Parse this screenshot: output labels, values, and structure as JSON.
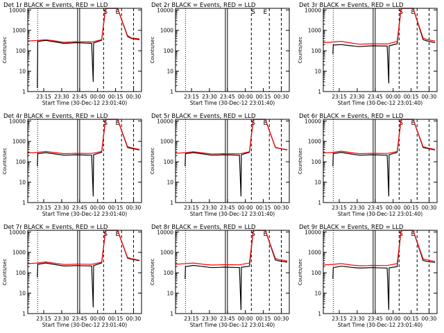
{
  "chart_data": [
    {
      "type": "line",
      "title": "Det 1r BLACK = Events, RED = LLD",
      "xlabel": "Start Time (30-Dec-12 23:01:40)",
      "ylabel": "Counts/sec",
      "yscale": "log",
      "ylim": [
        1,
        12000
      ],
      "xlim_seconds_after_start": [
        0,
        5700
      ],
      "x_tick_labels": [
        "23:15",
        "23:30",
        "23:45",
        "00:00",
        "00:15",
        "00:30"
      ],
      "y_tick_labels": [
        "1",
        "10",
        "100",
        "1000",
        "10000"
      ],
      "markers": [
        "S",
        "E"
      ],
      "series": [
        {
          "color": "#000000",
          "x": [
            480,
            500,
            900,
            1400,
            1800,
            2200,
            2400,
            3200,
            3280,
            3300,
            3700,
            3900,
            4000,
            4500,
            5000,
            5200,
            5600
          ],
          "y": [
            1.5,
            290,
            320,
            270,
            230,
            240,
            250,
            230,
            3.0,
            240,
            330,
            12000,
            12000,
            12000,
            500,
            400,
            350
          ]
        },
        {
          "color": "#ff0000",
          "x": [
            0,
            500,
            900,
            1400,
            1800,
            2200,
            2400,
            3200,
            3300,
            3700,
            3900,
            4000,
            4500,
            5000,
            5200,
            5600
          ],
          "y": [
            300,
            320,
            350,
            300,
            260,
            270,
            280,
            270,
            280,
            350,
            12000,
            12000,
            12000,
            550,
            420,
            380
          ]
        }
      ]
    },
    {
      "type": "line",
      "title": "Det 2r BLACK = Events, RED = LLD",
      "xlabel": "Start Time (30-Dec-12 23:01:40)",
      "ylabel": "Counts/sec",
      "yscale": "log",
      "ylim": [
        1,
        12000
      ],
      "xlim_seconds_after_start": [
        0,
        5700
      ],
      "x_tick_labels": [
        "23:15",
        "23:30",
        "23:45",
        "00:00",
        "00:15",
        "00:30"
      ],
      "y_tick_labels": [
        "1",
        "10",
        "100",
        "1000",
        "10000"
      ],
      "markers": [
        "S",
        "E"
      ],
      "series": []
    },
    {
      "type": "line",
      "title": "Det 3r BLACK = Events, RED = LLD",
      "xlabel": "Start Time (30-Dec-12 23:01:40)",
      "ylabel": "Counts/sec",
      "yscale": "log",
      "ylim": [
        1,
        12000
      ],
      "xlim_seconds_after_start": [
        0,
        5700
      ],
      "x_tick_labels": [
        "23:15",
        "23:30",
        "23:45",
        "00:00",
        "00:15",
        "00:30"
      ],
      "y_tick_labels": [
        "1",
        "10",
        "100",
        "1000",
        "10000"
      ],
      "markers": [
        "S",
        "E"
      ],
      "series": [
        {
          "color": "#000000",
          "x": [
            480,
            500,
            900,
            1400,
            1800,
            2200,
            2400,
            3200,
            3280,
            3300,
            3700,
            3900,
            4000,
            4500,
            5000,
            5200,
            5600
          ],
          "y": [
            70,
            190,
            200,
            175,
            160,
            170,
            175,
            170,
            2.5,
            175,
            220,
            12000,
            12000,
            12000,
            350,
            300,
            250
          ]
        },
        {
          "color": "#ff0000",
          "x": [
            0,
            500,
            900,
            1400,
            1800,
            2200,
            2400,
            3200,
            3300,
            3700,
            3900,
            4000,
            4500,
            5000,
            5200,
            5600
          ],
          "y": [
            250,
            270,
            290,
            240,
            210,
            215,
            220,
            215,
            225,
            290,
            12000,
            12000,
            12000,
            420,
            350,
            300
          ]
        }
      ]
    },
    {
      "type": "line",
      "title": "Det 4r BLACK = Events, RED = LLD",
      "xlabel": "Start Time (30-Dec-12 23:01:40)",
      "ylabel": "Counts/sec",
      "yscale": "log",
      "ylim": [
        1,
        12000
      ],
      "xlim_seconds_after_start": [
        0,
        5700
      ],
      "x_tick_labels": [
        "23:15",
        "23:30",
        "23:45",
        "00:00",
        "00:15",
        "00:30"
      ],
      "y_tick_labels": [
        "1",
        "10",
        "100",
        "1000",
        "10000"
      ],
      "markers": [
        "S",
        "E"
      ],
      "series": [
        {
          "color": "#000000",
          "x": [
            480,
            500,
            900,
            1400,
            1800,
            2200,
            2400,
            3200,
            3280,
            3300,
            3700,
            3900,
            4000,
            4500,
            5000,
            5200,
            5600
          ],
          "y": [
            60,
            250,
            280,
            240,
            210,
            215,
            220,
            210,
            2.0,
            220,
            290,
            12000,
            12000,
            12000,
            500,
            450,
            380
          ]
        },
        {
          "color": "#ff0000",
          "x": [
            0,
            500,
            900,
            1400,
            1800,
            2200,
            2400,
            3200,
            3300,
            3700,
            3900,
            4000,
            4500,
            5000,
            5200,
            5600
          ],
          "y": [
            270,
            290,
            320,
            280,
            250,
            255,
            260,
            255,
            265,
            320,
            12000,
            12000,
            12000,
            550,
            480,
            400
          ]
        }
      ]
    },
    {
      "type": "line",
      "title": "Det 5r BLACK = Events, RED = LLD",
      "xlabel": "Start Time (30-Dec-12 23:01:40)",
      "ylabel": "Counts/sec",
      "yscale": "log",
      "ylim": [
        1,
        12000
      ],
      "xlim_seconds_after_start": [
        0,
        5700
      ],
      "x_tick_labels": [
        "23:15",
        "23:30",
        "23:45",
        "00:00",
        "00:15",
        "00:30"
      ],
      "y_tick_labels": [
        "1",
        "10",
        "100",
        "1000",
        "10000"
      ],
      "markers": [
        "S",
        "E"
      ],
      "series": [
        {
          "color": "#000000",
          "x": [
            480,
            500,
            900,
            1400,
            1800,
            2200,
            2400,
            3200,
            3280,
            3300,
            3700,
            3900,
            4000,
            4500,
            5000,
            5200,
            5600
          ],
          "y": [
            60,
            250,
            280,
            240,
            210,
            215,
            220,
            210,
            2.0,
            220,
            290,
            12000,
            12000,
            12000,
            500,
            450,
            380
          ]
        },
        {
          "color": "#ff0000",
          "x": [
            0,
            500,
            900,
            1400,
            1800,
            2200,
            2400,
            3200,
            3300,
            3700,
            3900,
            4000,
            4500,
            5000,
            5200,
            5600
          ],
          "y": [
            260,
            280,
            310,
            270,
            240,
            245,
            250,
            245,
            255,
            310,
            12000,
            12000,
            12000,
            520,
            460,
            390
          ]
        }
      ]
    },
    {
      "type": "line",
      "title": "Det 6r BLACK = Events, RED = LLD",
      "xlabel": "Start Time (30-Dec-12 23:01:40)",
      "ylabel": "Counts/sec",
      "yscale": "log",
      "ylim": [
        1,
        12000
      ],
      "xlim_seconds_after_start": [
        0,
        5700
      ],
      "x_tick_labels": [
        "23:15",
        "23:30",
        "23:45",
        "00:00",
        "00:15",
        "00:30"
      ],
      "y_tick_labels": [
        "1",
        "10",
        "100",
        "1000",
        "10000"
      ],
      "markers": [
        "S",
        "E"
      ],
      "series": [
        {
          "color": "#000000",
          "x": [
            480,
            500,
            900,
            1400,
            1800,
            2200,
            2400,
            3200,
            3280,
            3300,
            3700,
            3900,
            4000,
            4500,
            5000,
            5200,
            5600
          ],
          "y": [
            60,
            250,
            290,
            240,
            210,
            215,
            220,
            210,
            2.0,
            220,
            290,
            12000,
            12000,
            12000,
            500,
            450,
            380
          ]
        },
        {
          "color": "#ff0000",
          "x": [
            0,
            500,
            900,
            1400,
            1800,
            2200,
            2400,
            3200,
            3300,
            3700,
            3900,
            4000,
            4500,
            5000,
            5200,
            5600
          ],
          "y": [
            270,
            290,
            330,
            280,
            250,
            255,
            260,
            255,
            265,
            320,
            12000,
            12000,
            12000,
            550,
            480,
            400
          ]
        }
      ]
    },
    {
      "type": "line",
      "title": "Det 7r BLACK = Events, RED = LLD",
      "xlabel": "Start Time (30-Dec-12 23:01:40)",
      "ylabel": "Counts/sec",
      "yscale": "log",
      "ylim": [
        1,
        12000
      ],
      "xlim_seconds_after_start": [
        0,
        5700
      ],
      "x_tick_labels": [
        "23:15",
        "23:30",
        "23:45",
        "00:00",
        "00:15",
        "00:30"
      ],
      "y_tick_labels": [
        "1",
        "10",
        "100",
        "1000",
        "10000"
      ],
      "markers": [
        "S",
        "E"
      ],
      "series": [
        {
          "color": "#000000",
          "x": [
            480,
            500,
            900,
            1400,
            1800,
            2200,
            2400,
            3200,
            3280,
            3300,
            3700,
            3900,
            4000,
            4500,
            5000,
            5200,
            5600
          ],
          "y": [
            60,
            260,
            300,
            250,
            215,
            220,
            225,
            215,
            2.0,
            225,
            300,
            12000,
            12000,
            12000,
            520,
            460,
            390
          ]
        },
        {
          "color": "#ff0000",
          "x": [
            0,
            500,
            900,
            1400,
            1800,
            2200,
            2400,
            3200,
            3300,
            3700,
            3900,
            4000,
            4500,
            5000,
            5200,
            5600
          ],
          "y": [
            280,
            300,
            340,
            290,
            255,
            260,
            265,
            260,
            270,
            330,
            12000,
            12000,
            12000,
            560,
            490,
            410
          ]
        }
      ]
    },
    {
      "type": "line",
      "title": "Det 8r BLACK = Events, RED = LLD",
      "xlabel": "Start Time (30-Dec-12 23:01:40)",
      "ylabel": "Counts/sec",
      "yscale": "log",
      "ylim": [
        1,
        12000
      ],
      "xlim_seconds_after_start": [
        0,
        5700
      ],
      "x_tick_labels": [
        "23:15",
        "23:30",
        "23:45",
        "00:00",
        "00:15",
        "00:30"
      ],
      "y_tick_labels": [
        "1",
        "10",
        "100",
        "1000",
        "10000"
      ],
      "markers": [
        "S",
        "E"
      ],
      "series": [
        {
          "color": "#000000",
          "x": [
            480,
            500,
            900,
            1400,
            1800,
            2200,
            2400,
            3200,
            3280,
            3300,
            3700,
            3900,
            4000,
            4500,
            5000,
            5200,
            5600
          ],
          "y": [
            50,
            200,
            230,
            200,
            180,
            185,
            190,
            180,
            1.5,
            185,
            210,
            12000,
            12000,
            12000,
            420,
            380,
            330
          ]
        },
        {
          "color": "#ff0000",
          "x": [
            0,
            500,
            900,
            1400,
            1800,
            2200,
            2400,
            3200,
            3300,
            3700,
            3900,
            4000,
            4500,
            5000,
            5200,
            5600
          ],
          "y": [
            260,
            280,
            300,
            260,
            240,
            245,
            250,
            245,
            255,
            300,
            12000,
            12000,
            12000,
            500,
            440,
            380
          ]
        }
      ]
    },
    {
      "type": "line",
      "title": "Det 9r BLACK = Events, RED = LLD",
      "xlabel": "Start Time (30-Dec-12 23:01:40)",
      "ylabel": "Counts/sec",
      "yscale": "log",
      "ylim": [
        1,
        12000
      ],
      "xlim_seconds_after_start": [
        0,
        5700
      ],
      "x_tick_labels": [
        "23:15",
        "23:30",
        "23:45",
        "00:00",
        "00:15",
        "00:30"
      ],
      "y_tick_labels": [
        "1",
        "10",
        "100",
        "1000",
        "10000"
      ],
      "markers": [
        "S",
        "E"
      ],
      "series": [
        {
          "color": "#000000",
          "x": [
            480,
            500,
            900,
            1400,
            1800,
            2200,
            2400,
            3200,
            3280,
            3300,
            3700,
            3900,
            4000,
            4500,
            5000,
            5200,
            5600
          ],
          "y": [
            50,
            180,
            210,
            185,
            170,
            175,
            180,
            170,
            1.5,
            175,
            200,
            12000,
            12000,
            12000,
            400,
            360,
            320
          ]
        },
        {
          "color": "#ff0000",
          "x": [
            0,
            500,
            900,
            1400,
            1800,
            2200,
            2400,
            3200,
            3300,
            3700,
            3900,
            4000,
            4500,
            5000,
            5200,
            5600
          ],
          "y": [
            240,
            260,
            280,
            240,
            220,
            225,
            230,
            225,
            235,
            280,
            12000,
            12000,
            12000,
            480,
            420,
            360
          ]
        }
      ]
    }
  ]
}
